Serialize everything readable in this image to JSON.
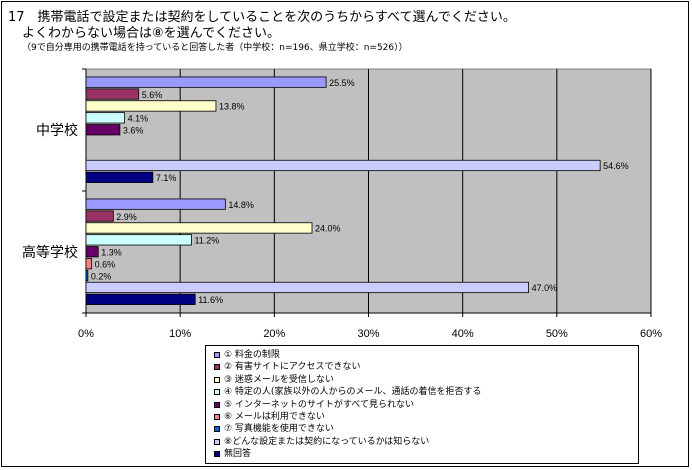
{
  "header": {
    "line1": "17　携帯電話で設定または契約をしていることを次のうちからすべて選んでください。",
    "line2": "よくわからない場合は⑧を選んでください。",
    "note": "（9で自分専用の携帯電話を持っていると回答した者（中学校：n=196、県立学校：n=526））"
  },
  "chart_data": {
    "type": "bar",
    "orientation": "horizontal",
    "title": "",
    "xlabel": "",
    "ylabel": "",
    "xlim": [
      0,
      60
    ],
    "tick_labels": [
      "0%",
      "10%",
      "20%",
      "30%",
      "40%",
      "50%",
      "60%"
    ],
    "categories": [
      "中学校",
      "高等学校"
    ],
    "plot_background": "#c0c0c0",
    "grid": true,
    "legend_position": "bottom",
    "series": [
      {
        "name": "① 料金の制限",
        "color": "#9999ff",
        "values": [
          25.5,
          14.8
        ],
        "labels": [
          "25.5%",
          "14.8%"
        ]
      },
      {
        "name": "② 有害サイトにアクセスできない",
        "color": "#993366",
        "values": [
          5.6,
          2.9
        ],
        "labels": [
          "5.6%",
          "2.9%"
        ]
      },
      {
        "name": "③ 迷惑メールを受信しない",
        "color": "#ffffcc",
        "values": [
          13.8,
          24.0
        ],
        "labels": [
          "13.8%",
          "24.0%"
        ]
      },
      {
        "name": "④ 特定の人(家族以外の人からのメール、通話の着信を拒否する",
        "color": "#ccffff",
        "values": [
          4.1,
          11.2
        ],
        "labels": [
          "4.1%",
          "11.2%"
        ]
      },
      {
        "name": "⑤ インターネットのサイトがすべて見られない",
        "color": "#660066",
        "values": [
          3.6,
          1.3
        ],
        "labels": [
          "3.6%",
          "1.3%"
        ]
      },
      {
        "name": "⑥ メールは利用できない",
        "color": "#ff8080",
        "values": [
          0,
          0.6
        ],
        "labels": [
          "",
          "0.6%"
        ]
      },
      {
        "name": "⑦ 写真機能を使用できない",
        "color": "#0066cc",
        "values": [
          0,
          0.2
        ],
        "labels": [
          "",
          "0.2%"
        ]
      },
      {
        "name": "⑧どんな設定または契約になっているかは知らない",
        "color": "#ccccff",
        "values": [
          54.6,
          47.0
        ],
        "labels": [
          "54.6%",
          "47.0%"
        ]
      },
      {
        "name": "無回答",
        "color": "#000080",
        "values": [
          7.1,
          11.6
        ],
        "labels": [
          "7.1%",
          "11.6%"
        ]
      }
    ]
  }
}
